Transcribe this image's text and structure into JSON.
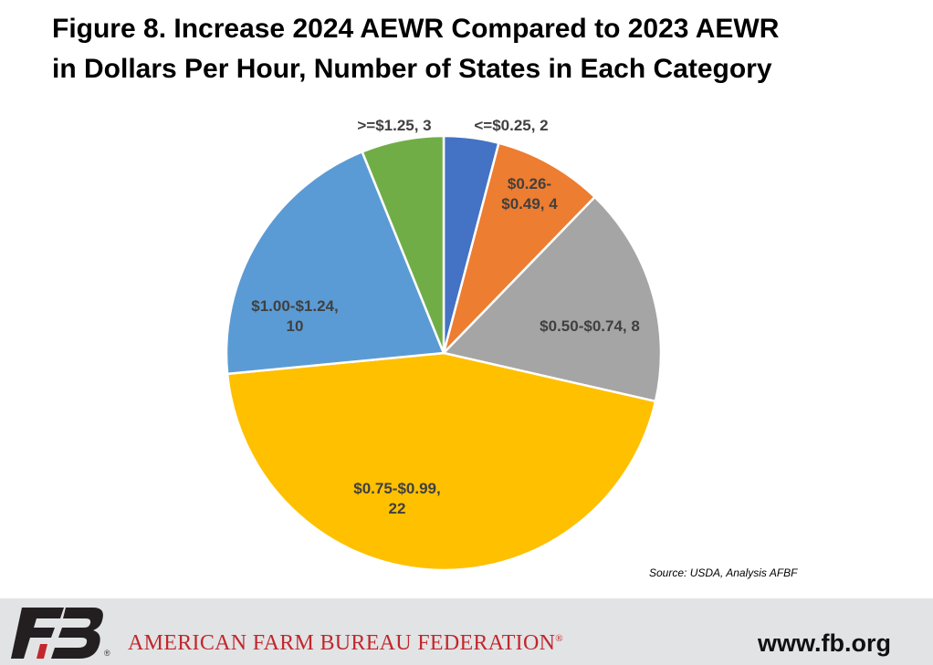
{
  "title": {
    "line1": "Figure 8. Increase 2024 AEWR Compared to 2023 AEWR",
    "line2": "in Dollars Per Hour, Number of States in Each Category"
  },
  "chart_data": {
    "type": "pie",
    "title": "Figure 8. Increase 2024 AEWR Compared to 2023 AEWR in Dollars Per Hour, Number of States in Each Category",
    "slices": [
      {
        "label_lines": [
          "<=$0.25, 2"
        ],
        "category": "<=$0.25",
        "value": 2,
        "color": "#4472c4"
      },
      {
        "label_lines": [
          "$0.26-",
          "$0.49, 4"
        ],
        "category": "$0.26-$0.49",
        "value": 4,
        "color": "#ed7d31"
      },
      {
        "label_lines": [
          "$0.50-$0.74, 8"
        ],
        "category": "$0.50-$0.74",
        "value": 8,
        "color": "#a5a5a5"
      },
      {
        "label_lines": [
          "$0.75-$0.99,",
          "22"
        ],
        "category": "$0.75-$0.99",
        "value": 22,
        "color": "#ffc000"
      },
      {
        "label_lines": [
          "$1.00-$1.24,",
          "10"
        ],
        "category": "$1.00-$1.24",
        "value": 10,
        "color": "#5b9bd5"
      },
      {
        "label_lines": [
          ">=$1.25, 3"
        ],
        "category": ">=$1.25",
        "value": 3,
        "color": "#70ad47"
      }
    ],
    "start_angle_deg": 0,
    "direction": "clockwise"
  },
  "source": "Source: USDA, Analysis AFBF",
  "footer": {
    "org_name": "AMERICAN FARM BUREAU FEDERATION",
    "registered_mark": "®",
    "url": "www.fb.org",
    "logo_text": "FB",
    "logo_icon": "fb-logo-icon",
    "brand_color": "#c1272d",
    "background": "#e2e3e4"
  }
}
